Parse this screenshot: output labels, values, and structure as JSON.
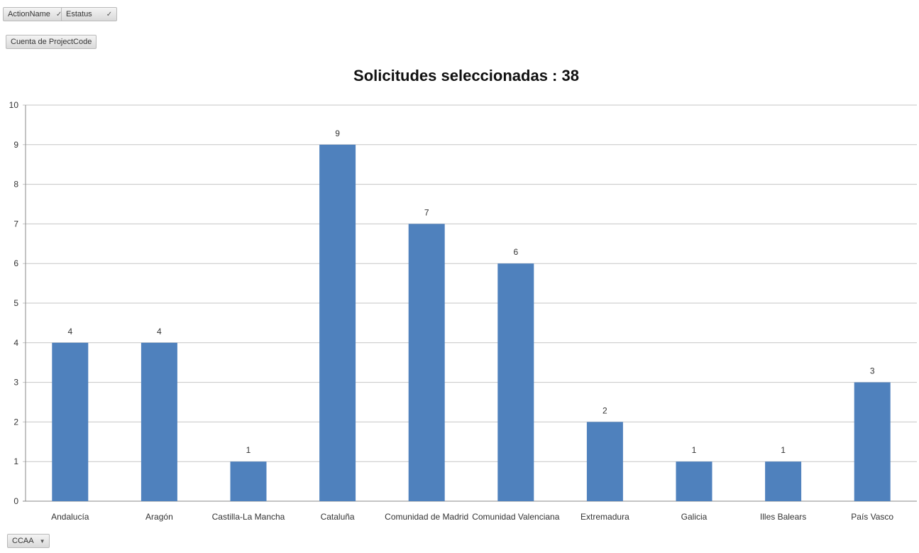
{
  "filters": {
    "action_name": "ActionName",
    "estatus": "Estatus",
    "values_field": "Cuenta de ProjectCode",
    "axis_field": "CCAA"
  },
  "icons": {
    "filter": "funnel-checkmark-icon",
    "dropdown": "chevron-down-icon"
  },
  "colors": {
    "bar": "#4f81bd",
    "grid": "#c6c6c6"
  },
  "chart_data": {
    "type": "bar",
    "title": "Solicitudes seleccionadas : 38",
    "categories": [
      "Andalucía",
      "Aragón",
      "Castilla-La Mancha",
      "Cataluña",
      "Comunidad de Madrid",
      "Comunidad Valenciana",
      "Extremadura",
      "Galicia",
      "Illes Balears",
      "País Vasco"
    ],
    "values": [
      4,
      4,
      1,
      9,
      7,
      6,
      2,
      1,
      1,
      3
    ],
    "ylim": [
      0,
      10
    ],
    "yticks": [
      0,
      1,
      2,
      3,
      4,
      5,
      6,
      7,
      8,
      9,
      10
    ],
    "grid": true,
    "legend": "none",
    "data_labels": true
  }
}
